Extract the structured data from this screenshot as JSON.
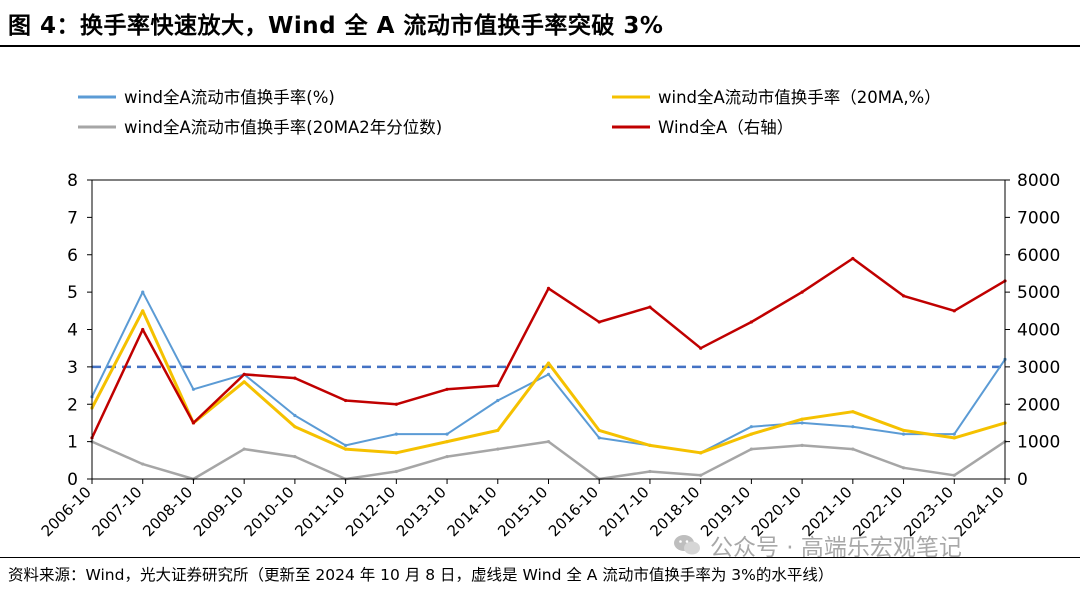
{
  "header": {
    "title": "图 4：换手率快速放大，Wind 全 A 流动市值换手率突破 3%"
  },
  "footer": {
    "source": "资料来源：Wind，光大证券研究所（更新至 2024 年 10 月 8 日，虚线是 Wind 全 A 流动市值换手率为 3%的水平线）",
    "watermark": "公众号 · 高端乐宏观笔记"
  },
  "chart_data": {
    "type": "line",
    "title": "",
    "xlabel": "",
    "ylabel": "",
    "categories": [
      "2006-10",
      "2007-10",
      "2008-10",
      "2009-10",
      "2010-10",
      "2011-10",
      "2012-10",
      "2013-10",
      "2014-10",
      "2015-10",
      "2016-10",
      "2017-10",
      "2018-10",
      "2019-10",
      "2020-10",
      "2021-10",
      "2022-10",
      "2023-10",
      "2024-10"
    ],
    "ylim": [
      0,
      8
    ],
    "y_ticks": [
      "0",
      "1",
      "2",
      "3",
      "4",
      "5",
      "6",
      "7",
      "8"
    ],
    "y2lim": [
      0,
      8000
    ],
    "y2_ticks": [
      "0",
      "1000",
      "2000",
      "3000",
      "4000",
      "5000",
      "6000",
      "7000",
      "8000"
    ],
    "reference_line": {
      "value": 3,
      "style": "dashed",
      "color": "#4472C4"
    },
    "legend": {
      "position": "top",
      "columns": 2
    },
    "series": [
      {
        "name": "wind全A流动市值换手率(%)",
        "axis": "left",
        "color": "#5B9BD5",
        "values": [
          2.2,
          5.0,
          2.4,
          2.8,
          1.7,
          0.9,
          1.2,
          1.2,
          2.1,
          2.8,
          1.1,
          0.9,
          0.7,
          1.4,
          1.5,
          1.4,
          1.2,
          1.2,
          3.2
        ]
      },
      {
        "name": "wind全A流动市值换手率（20MA,%）",
        "axis": "left",
        "color": "#F5C100",
        "values": [
          1.9,
          4.5,
          1.5,
          2.6,
          1.4,
          0.8,
          0.7,
          1.0,
          1.3,
          3.1,
          1.3,
          0.9,
          0.7,
          1.2,
          1.6,
          1.8,
          1.3,
          1.1,
          1.5
        ]
      },
      {
        "name": "wind全A流动市值换手率(20MA2年分位数)",
        "axis": "left",
        "color": "#A6A6A6",
        "values": [
          1.0,
          0.4,
          0.0,
          0.8,
          0.6,
          0.0,
          0.2,
          0.6,
          0.8,
          1.0,
          0.0,
          0.2,
          0.1,
          0.8,
          0.9,
          0.8,
          0.3,
          0.1,
          1.0
        ]
      },
      {
        "name": "Wind全A（右轴）",
        "axis": "right",
        "color": "#C00000",
        "values": [
          1100,
          4000,
          1500,
          2800,
          2700,
          2100,
          2000,
          2400,
          2500,
          5100,
          4200,
          4600,
          3500,
          4200,
          5000,
          5900,
          4900,
          4500,
          5300
        ]
      }
    ]
  }
}
